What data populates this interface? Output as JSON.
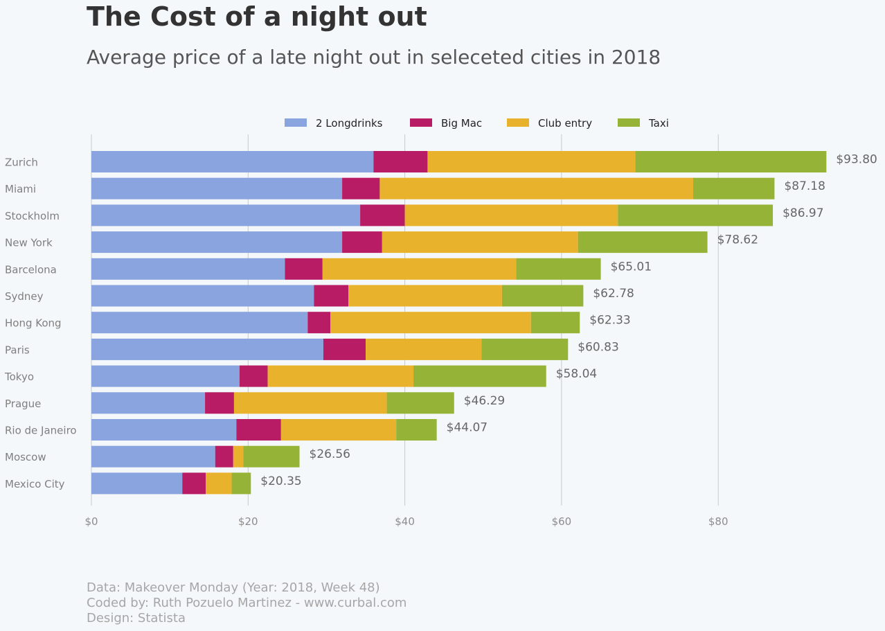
{
  "title": "The Cost of a night out",
  "subtitle": "Average price of a late night out in seleceted cities in 2018",
  "footer": {
    "line1": "Data: Makeover Monday (Year: 2018, Week 48)",
    "line2": "Coded by: Ruth Pozuelo Martinez - www.curbal.com",
    "line3": "Design: Statista"
  },
  "chart_data": {
    "type": "bar",
    "orientation": "horizontal",
    "stacked": true,
    "categories": [
      "Zurich",
      "Miami",
      "Stockholm",
      "New York",
      "Barcelona",
      "Sydney",
      "Hong Kong",
      "Paris",
      "Tokyo",
      "Prague",
      "Rio de Janeiro",
      "Moscow",
      "Mexico City"
    ],
    "series": [
      {
        "name": "2 Longdrinks",
        "color": "#89a4de",
        "values": [
          36.0,
          32.0,
          34.3,
          32.0,
          24.7,
          28.4,
          27.6,
          29.6,
          18.9,
          14.5,
          18.5,
          15.8,
          11.6
        ]
      },
      {
        "name": "Big Mac",
        "color": "#b71c64",
        "values": [
          6.9,
          4.8,
          5.7,
          5.1,
          4.8,
          4.4,
          2.9,
          5.4,
          3.6,
          3.7,
          5.7,
          2.3,
          3.0
        ]
      },
      {
        "name": "Club entry",
        "color": "#e9b22c",
        "values": [
          26.5,
          40.0,
          27.2,
          25.0,
          24.7,
          19.6,
          25.6,
          14.8,
          18.6,
          19.5,
          14.7,
          1.3,
          3.3
        ]
      },
      {
        "name": "Taxi",
        "color": "#95b437",
        "values": [
          24.4,
          10.38,
          19.77,
          16.52,
          10.81,
          10.38,
          6.23,
          11.03,
          16.94,
          8.59,
          5.17,
          7.16,
          2.45
        ]
      }
    ],
    "totals": [
      "$93.80",
      "$87.18",
      "$86.97",
      "$78.62",
      "$65.01",
      "$62.78",
      "$62.33",
      "$60.83",
      "$58.04",
      "$46.29",
      "$44.07",
      "$26.56",
      "$20.35"
    ],
    "xticks": [
      0,
      20,
      40,
      60,
      80
    ],
    "xtick_labels": [
      "$0",
      "$20",
      "$40",
      "$60",
      "$80"
    ],
    "xlim": [
      0,
      95
    ],
    "grid": "vertical",
    "legend_position": "top-center"
  }
}
